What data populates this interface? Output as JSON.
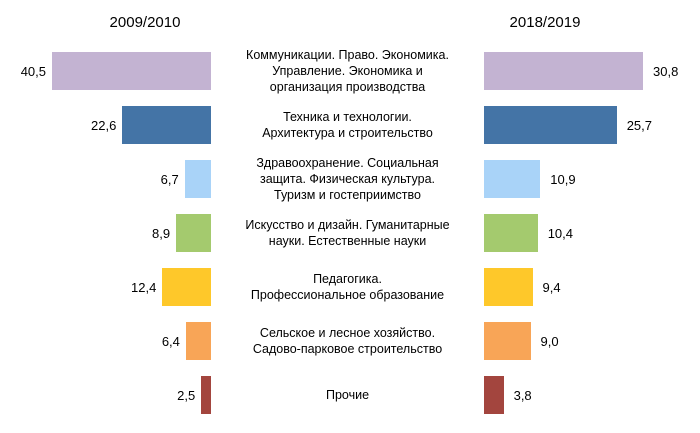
{
  "header": {
    "left": "2009/2010",
    "right": "2018/2019"
  },
  "chart_data": {
    "type": "bar",
    "orientation": "horizontal-mirrored",
    "title": "",
    "xlabel": "",
    "ylabel": "",
    "grid": false,
    "legend_position": "column-headers-top",
    "background": "#ffffff",
    "text_color": "#000000",
    "categories": [
      "Коммуникации. Право. Экономика.\nУправление. Экономика и\nорганизация производства",
      "Техника и технологии.\nАрхитектура и строительство",
      "Здравоохранение. Социальная\nзащита. Физическая культура.\nТуризм и гостеприимство",
      "Искусство и дизайн. Гуманитарные\nнауки. Естественные науки",
      "Педагогика.\nПрофессиональное образование",
      "Сельское и лесное хозяйство.\nСадово-парковое строительство",
      "Прочие"
    ],
    "series": [
      {
        "name": "2009/2010",
        "side": "left",
        "values": [
          40.5,
          22.6,
          6.7,
          8.9,
          12.4,
          6.4,
          2.5
        ],
        "values_display": [
          "40,5",
          "22,6",
          "6,7",
          "8,9",
          "12,4",
          "6,4",
          "2,5"
        ]
      },
      {
        "name": "2018/2019",
        "side": "right",
        "values": [
          30.8,
          25.7,
          10.9,
          10.4,
          9.4,
          9.0,
          3.8
        ],
        "values_display": [
          "30,8",
          "25,7",
          "10,9",
          "10,4",
          "9,4",
          "9,0",
          "3,8"
        ]
      }
    ],
    "bar_colors": [
      "#c3b3d2",
      "#4474a6",
      "#a9d3f8",
      "#a4ca6e",
      "#fec82a",
      "#f8a557",
      "#a3453e"
    ]
  }
}
